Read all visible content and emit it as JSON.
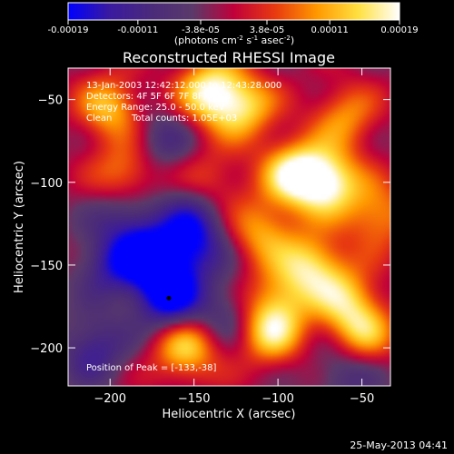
{
  "chart_data": {
    "type": "heatmap",
    "title": "Reconstructed RHESSI Image",
    "xlabel": "Heliocentric X (arcsec)",
    "ylabel": "Heliocentric Y (arcsec)",
    "xlim": [
      -225,
      -33
    ],
    "ylim": [
      -223,
      -31
    ],
    "x_ticks": [
      -200,
      -150,
      -100,
      -50
    ],
    "y_ticks": [
      -200,
      -150,
      -100,
      -50
    ],
    "colorbar": {
      "range": [
        -0.00019,
        0.00019
      ],
      "ticks": [
        -0.00019,
        -0.00011,
        -3.8e-05,
        3.8e-05,
        0.00011,
        0.00019
      ],
      "tick_labels": [
        "-0.00019",
        "-0.00011",
        "-3.8e-05",
        "3.8e-05",
        "0.00011",
        "0.00019"
      ],
      "unit_label_parts": [
        "(photons cm",
        "-2",
        " s",
        "-1",
        " asec",
        "-2",
        ")"
      ],
      "colors": [
        "#0000ff",
        "#3a1aa0",
        "#4a2a7a",
        "#5a3a6a",
        "#c0003a",
        "#e83a10",
        "#ff9800",
        "#ffe040",
        "#ffffff"
      ]
    },
    "annotations": {
      "line1": "13-Jan-2003 12:42:12.000 to 12:43:28.000",
      "line2": "Detectors: 4F 5F 6F 7F 8F, Att 0",
      "line3": "Energy Range: 25.0 - 50.0 keV",
      "line4a": "Clean",
      "line4b": "Total counts: 1.05E+03",
      "peak": "Position of Peak = [-133,-38]"
    },
    "peak_position": [
      -133,
      -38
    ],
    "features": [
      {
        "x": -90,
        "y": -95,
        "v": 0.00019
      },
      {
        "x": -70,
        "y": -100,
        "v": 0.00019
      },
      {
        "x": -80,
        "y": -150,
        "v": 0.00016
      },
      {
        "x": -140,
        "y": -45,
        "v": 0.00019
      },
      {
        "x": -120,
        "y": -55,
        "v": 0.00014
      },
      {
        "x": -200,
        "y": -55,
        "v": 0.00014
      },
      {
        "x": -190,
        "y": -95,
        "v": 0.00012
      },
      {
        "x": -110,
        "y": -130,
        "v": 0.00012
      },
      {
        "x": -155,
        "y": -200,
        "v": 0.00016
      },
      {
        "x": -105,
        "y": -190,
        "v": 0.00016
      },
      {
        "x": -50,
        "y": -190,
        "v": 0.00014
      },
      {
        "x": -40,
        "y": -120,
        "v": 0.00012
      },
      {
        "x": -60,
        "y": -60,
        "v": 0.00011
      },
      {
        "x": -100,
        "y": -170,
        "v": 0.0001
      },
      {
        "x": -60,
        "y": -170,
        "v": 0.00012
      },
      {
        "x": -140,
        "y": -100,
        "v": 8e-05
      },
      {
        "x": -165,
        "y": -170,
        "v": -0.00019
      },
      {
        "x": -175,
        "y": -145,
        "v": -0.00017
      },
      {
        "x": -200,
        "y": -150,
        "v": -0.00011
      },
      {
        "x": -150,
        "y": -140,
        "v": -0.00011
      },
      {
        "x": -190,
        "y": -120,
        "v": -9e-05
      },
      {
        "x": -150,
        "y": -120,
        "v": -0.0001
      },
      {
        "x": -210,
        "y": -200,
        "v": -0.00011
      },
      {
        "x": -130,
        "y": -180,
        "v": -8e-05
      },
      {
        "x": -170,
        "y": -75,
        "v": -8e-05
      },
      {
        "x": -60,
        "y": -215,
        "v": -8e-05
      }
    ]
  },
  "footer": {
    "timestamp": "25-May-2013 04:41"
  }
}
